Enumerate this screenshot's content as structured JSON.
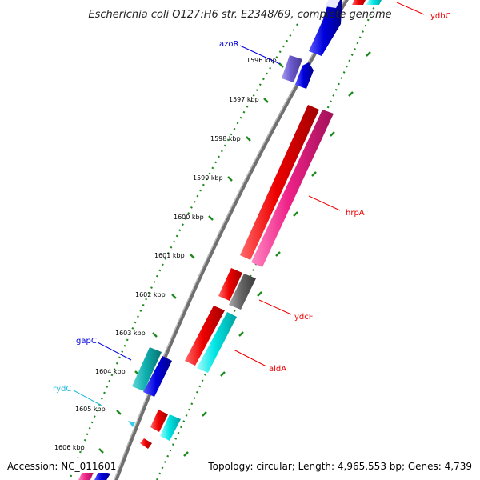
{
  "title": "Escherichia coli O127:H6 str. E2348/69, complete genome",
  "footer": {
    "accession": "Accession: NC_011601",
    "summary": "Topology: circular; Length: 4,965,553 bp; Genes: 4,739"
  },
  "colors": {
    "backbone": "#6f6f6f",
    "tick_dots": "#1e8a1e",
    "red": "#ee0000",
    "pink": "#ee2288",
    "blue": "#0000dd",
    "cyan": "#00dddd",
    "teal": "#10b0b0",
    "gray": "#666666",
    "slate": "#6a5acd",
    "light_cyan": "#33ccee"
  },
  "kbp_ticks": [
    "1596 kbp",
    "1597 kbp",
    "1598 kbp",
    "1599 kbp",
    "1600 kbp",
    "1601 kbp",
    "1602 kbp",
    "1603 kbp",
    "1604 kbp",
    "1605 kbp",
    "1606 kbp"
  ],
  "gene_labels": [
    {
      "name": "ydbC",
      "color": "#ee0000"
    },
    {
      "name": "azoR",
      "color": "#0000dd"
    },
    {
      "name": "hrpA",
      "color": "#ee0000"
    },
    {
      "name": "ydcF",
      "color": "#ee0000"
    },
    {
      "name": "aldA",
      "color": "#ee0000"
    },
    {
      "name": "gapC",
      "color": "#0000dd"
    },
    {
      "name": "rydC",
      "color": "#22bbdd"
    }
  ]
}
